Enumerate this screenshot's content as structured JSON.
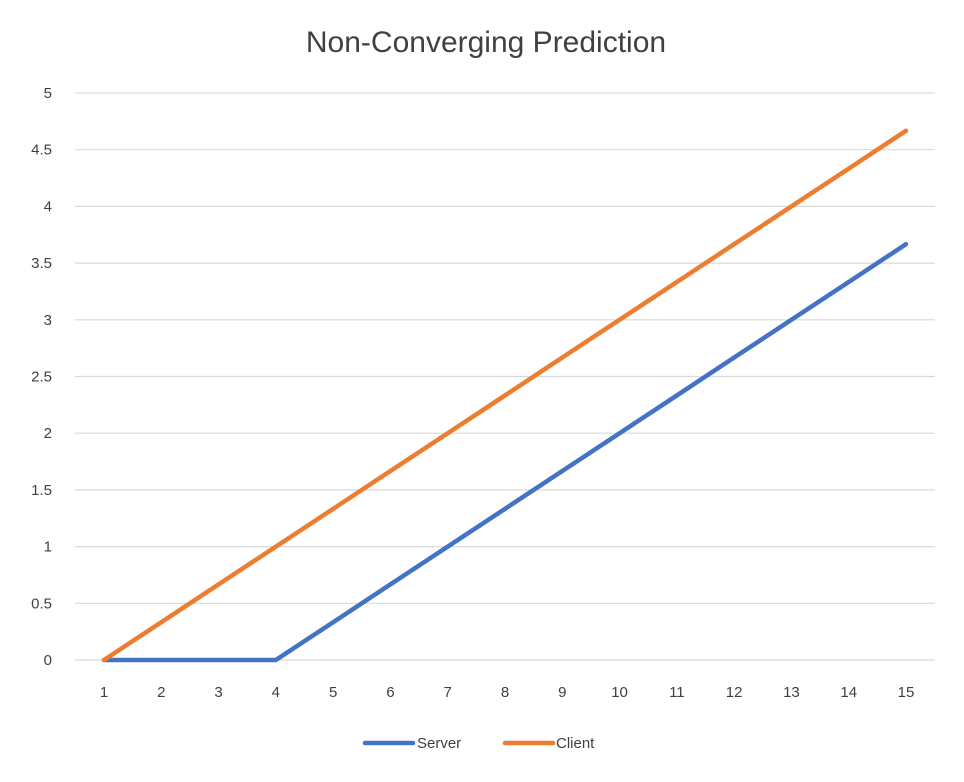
{
  "chart_data": {
    "type": "line",
    "title": "Non-Converging Prediction",
    "xlabel": "",
    "ylabel": "",
    "x": [
      1,
      2,
      3,
      4,
      5,
      6,
      7,
      8,
      9,
      10,
      11,
      12,
      13,
      14,
      15
    ],
    "x_tick_labels": [
      "1",
      "2",
      "3",
      "4",
      "5",
      "6",
      "7",
      "8",
      "9",
      "10",
      "11",
      "12",
      "13",
      "14",
      "15"
    ],
    "y_tick_labels": [
      "0",
      "0.5",
      "1",
      "1.5",
      "2",
      "2.5",
      "3",
      "3.5",
      "4",
      "4.5",
      "5"
    ],
    "ylim": [
      0,
      5
    ],
    "grid": true,
    "legend_position": "bottom",
    "series": [
      {
        "name": "Server",
        "color": "#4472c4",
        "values": [
          0,
          0,
          0,
          0,
          0.333,
          0.667,
          1,
          1.333,
          1.667,
          2,
          2.333,
          2.667,
          3,
          3.333,
          3.667
        ]
      },
      {
        "name": "Client",
        "color": "#ed7d31",
        "values": [
          0,
          0.333,
          0.667,
          1,
          1.333,
          1.667,
          2,
          2.333,
          2.667,
          3,
          3.333,
          3.667,
          4,
          4.333,
          4.667
        ]
      }
    ]
  }
}
